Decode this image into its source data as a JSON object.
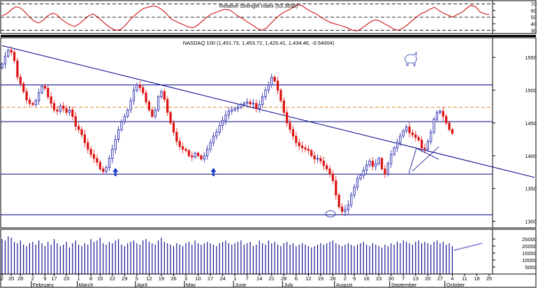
{
  "chart_data": [
    {
      "type": "line",
      "panel": "rsi",
      "title": "Relative Strength Index (53.3650)",
      "ylim": [
        25,
        75
      ],
      "y_ticks": [
        "70",
        "60",
        "50",
        "40",
        "30"
      ],
      "reference_lines": [
        70,
        50,
        30
      ],
      "series": [
        {
          "color": "#cc0000",
          "values": [
            52,
            55,
            61,
            66,
            64,
            58,
            50,
            44,
            41,
            45,
            52,
            56,
            54,
            47,
            42,
            38,
            36,
            40,
            46,
            52,
            55,
            50,
            44,
            38,
            33,
            30,
            31,
            37,
            45,
            52,
            58,
            63,
            65,
            67,
            66,
            62,
            56,
            48,
            44,
            41,
            38,
            35,
            34,
            38,
            44,
            50,
            55,
            57,
            60,
            62,
            61,
            56,
            51,
            47,
            42,
            38,
            33,
            30,
            33,
            40,
            47,
            53,
            58,
            61,
            65,
            69,
            67,
            62,
            58,
            55,
            50,
            46,
            42,
            40,
            38,
            36,
            33,
            30,
            29,
            33,
            38,
            43,
            46,
            44,
            40,
            36,
            32,
            30,
            33,
            38,
            44,
            50,
            55,
            58,
            62,
            65,
            60,
            56,
            53,
            50,
            54,
            57,
            63,
            68,
            66,
            58,
            55,
            54
          ]
        }
      ]
    },
    {
      "type": "candlestick",
      "panel": "price",
      "title": "NASDAQ 100 (1,451.73, 1,453.72, 1,425.41, 1,434.46, -0.54004)",
      "ylim": [
        1290,
        1580
      ],
      "y_ticks": [
        "1550",
        "1500",
        "1450",
        "1400",
        "1350",
        "1300"
      ],
      "horizontal_lines": [
        1508,
        1452,
        1372,
        1310
      ],
      "dashed_line": 1474,
      "trendline": {
        "from": {
          "day": 0,
          "value": 1568
        },
        "to": {
          "day": 154,
          "value": 1390
        }
      },
      "arrows_at_days": [
        37,
        69
      ],
      "closes": [
        1540,
        1552,
        1561,
        1558,
        1545,
        1520,
        1510,
        1498,
        1485,
        1480,
        1478,
        1484,
        1496,
        1506,
        1503,
        1490,
        1480,
        1470,
        1468,
        1476,
        1472,
        1466,
        1470,
        1460,
        1445,
        1440,
        1432,
        1420,
        1410,
        1402,
        1396,
        1390,
        1380,
        1376,
        1382,
        1396,
        1410,
        1425,
        1440,
        1452,
        1460,
        1470,
        1484,
        1500,
        1508,
        1504,
        1496,
        1482,
        1470,
        1460,
        1470,
        1490,
        1498,
        1486,
        1466,
        1450,
        1436,
        1422,
        1414,
        1410,
        1408,
        1400,
        1398,
        1404,
        1400,
        1395,
        1400,
        1410,
        1420,
        1430,
        1436,
        1446,
        1454,
        1462,
        1468,
        1470,
        1472,
        1474,
        1478,
        1480,
        1482,
        1479,
        1480,
        1472,
        1478,
        1490,
        1500,
        1508,
        1520,
        1514,
        1500,
        1484,
        1466,
        1450,
        1440,
        1430,
        1420,
        1415,
        1412,
        1410,
        1408,
        1400,
        1395,
        1396,
        1392,
        1385,
        1380,
        1372,
        1362,
        1340,
        1322,
        1315,
        1318,
        1325,
        1340,
        1352,
        1365,
        1370,
        1378,
        1386,
        1392,
        1384,
        1388,
        1396,
        1380,
        1372,
        1388,
        1402,
        1412,
        1420,
        1430,
        1438,
        1444,
        1435,
        1432,
        1428,
        1424,
        1412,
        1410,
        1422,
        1436,
        1456,
        1466,
        1468,
        1460,
        1450,
        1440,
        1434
      ]
    },
    {
      "type": "bar",
      "panel": "volume",
      "ylim": [
        0,
        32000
      ],
      "y_ticks": [
        "25000",
        "20000",
        "15000",
        "10000",
        "5000"
      ],
      "values": [
        25000,
        24000,
        27000,
        26000,
        23000,
        22000,
        24000,
        21000,
        20000,
        22000,
        23000,
        21000,
        24000,
        22000,
        20000,
        23000,
        21000,
        25000,
        22000,
        20000,
        21000,
        23000,
        19000,
        22000,
        24000,
        21000,
        20000,
        22000,
        21000,
        25000,
        23000,
        24000,
        26000,
        22000,
        21000,
        23000,
        22000,
        24000,
        25000,
        21000,
        20000,
        22000,
        23000,
        24000,
        22000,
        21000,
        24000,
        25000,
        23000,
        22000,
        21000,
        24000,
        26000,
        23000,
        22000,
        21000,
        20000,
        22000,
        21000,
        20000,
        22000,
        23000,
        21000,
        24000,
        22000,
        21000,
        22000,
        23000,
        22000,
        21000,
        20000,
        22000,
        23000,
        24000,
        22000,
        21000,
        22000,
        23000,
        24000,
        21000,
        22000,
        23000,
        20000,
        21000,
        24000,
        22000,
        21000,
        24000,
        22000,
        23000,
        21000,
        20000,
        22000,
        23000,
        21000,
        22000,
        20000,
        21000,
        22000,
        21000,
        20000,
        19000,
        20000,
        21000,
        22000,
        21000,
        22000,
        23000,
        24000,
        22000,
        21000,
        20000,
        21000,
        22000,
        21000,
        20000,
        21000,
        22000,
        23000,
        21000,
        20000,
        22000,
        21000,
        20000,
        19000,
        21000,
        20000,
        22000,
        21000,
        23000,
        22000,
        24000,
        23000,
        22000,
        21000,
        23000,
        24000,
        22000,
        23000,
        22000,
        21000,
        23000,
        24000,
        22000,
        23000,
        21000,
        22000,
        20000
      ]
    }
  ],
  "x_axis": {
    "day_labels": [
      {
        "day": 0,
        "text": "2"
      },
      {
        "day": 3,
        "text": "20"
      },
      {
        "day": 6,
        "text": "26"
      },
      {
        "day": 10,
        "text": "2"
      },
      {
        "day": 14,
        "text": "9"
      },
      {
        "day": 17,
        "text": "17"
      },
      {
        "day": 21,
        "text": "23"
      },
      {
        "day": 25,
        "text": "1"
      },
      {
        "day": 29,
        "text": "8"
      },
      {
        "day": 32,
        "text": "15"
      },
      {
        "day": 36,
        "text": "22"
      },
      {
        "day": 40,
        "text": "29"
      },
      {
        "day": 44,
        "text": "5"
      },
      {
        "day": 48,
        "text": "12"
      },
      {
        "day": 52,
        "text": "19"
      },
      {
        "day": 56,
        "text": "26"
      },
      {
        "day": 60,
        "text": "3"
      },
      {
        "day": 64,
        "text": "10"
      },
      {
        "day": 68,
        "text": "17"
      },
      {
        "day": 72,
        "text": "24"
      },
      {
        "day": 76,
        "text": "1"
      },
      {
        "day": 80,
        "text": "7"
      },
      {
        "day": 84,
        "text": "14"
      },
      {
        "day": 88,
        "text": "21"
      },
      {
        "day": 92,
        "text": "28"
      },
      {
        "day": 96,
        "text": "6"
      },
      {
        "day": 100,
        "text": "12"
      },
      {
        "day": 104,
        "text": "19"
      },
      {
        "day": 108,
        "text": "26"
      },
      {
        "day": 112,
        "text": "2"
      },
      {
        "day": 115,
        "text": "9"
      },
      {
        "day": 119,
        "text": "16"
      },
      {
        "day": 123,
        "text": "23"
      },
      {
        "day": 127,
        "text": "30"
      },
      {
        "day": 131,
        "text": "7"
      },
      {
        "day": 135,
        "text": "13"
      },
      {
        "day": 139,
        "text": "20"
      },
      {
        "day": 143,
        "text": "27"
      },
      {
        "day": 147,
        "text": "4"
      },
      {
        "day": 151,
        "text": "11"
      },
      {
        "day": 155,
        "text": "18"
      },
      {
        "day": 159,
        "text": "25"
      }
    ],
    "month_labels": [
      {
        "day": 10,
        "text": "February"
      },
      {
        "day": 25,
        "text": "March"
      },
      {
        "day": 44,
        "text": "April"
      },
      {
        "day": 60,
        "text": "May"
      },
      {
        "day": 76,
        "text": "June"
      },
      {
        "day": 92,
        "text": "July"
      },
      {
        "day": 109,
        "text": "August"
      },
      {
        "day": 127,
        "text": "September"
      },
      {
        "day": 145,
        "text": "October"
      }
    ]
  },
  "colors": {
    "up": "#1a1aaa",
    "down": "#dd1111",
    "line": "#00008b",
    "dash": "#e8883a",
    "rsi": "#cc0000"
  }
}
